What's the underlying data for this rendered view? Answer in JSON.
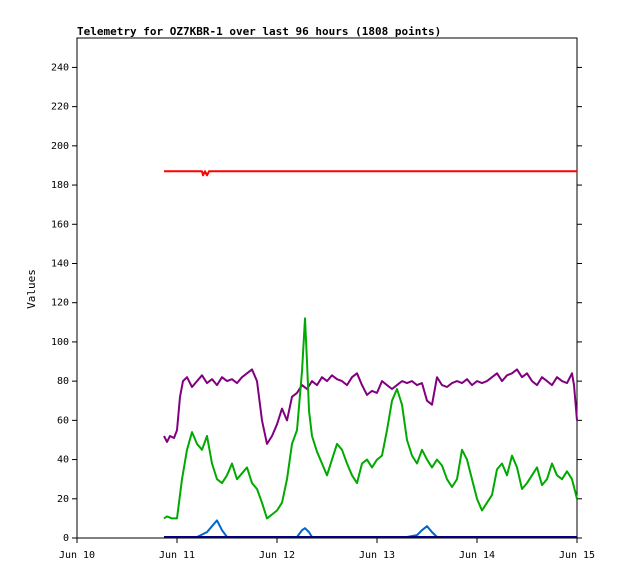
{
  "chart_data": {
    "type": "line",
    "title": "Telemetry for OZ7KBR-1 over last 96 hours (1808 points)",
    "xlabel": "",
    "ylabel": "Values",
    "x_tick_labels": [
      "Jun 10",
      "Jun 11",
      "Jun 12",
      "Jun 13",
      "Jun 14",
      "Jun 15"
    ],
    "y_tick_labels": [
      "0",
      "20",
      "40",
      "60",
      "80",
      "100",
      "120",
      "140",
      "160",
      "180",
      "200",
      "220",
      "240"
    ],
    "xlim": [
      0,
      5
    ],
    "ylim": [
      0,
      255
    ],
    "grid": false,
    "legend": "none",
    "series": [
      {
        "color": "#ff0000",
        "x": [
          0.87,
          1.2,
          1.25,
          1.26,
          1.28,
          1.3,
          1.32,
          5.0
        ],
        "y": [
          187,
          187,
          187,
          185,
          187,
          185,
          187,
          187
        ]
      },
      {
        "color": "#800080",
        "x": [
          0.87,
          0.9,
          0.93,
          0.97,
          1.0,
          1.03,
          1.06,
          1.1,
          1.15,
          1.2,
          1.25,
          1.3,
          1.35,
          1.4,
          1.45,
          1.5,
          1.55,
          1.6,
          1.65,
          1.7,
          1.75,
          1.8,
          1.85,
          1.9,
          1.95,
          2.0,
          2.05,
          2.1,
          2.15,
          2.2,
          2.25,
          2.3,
          2.35,
          2.4,
          2.45,
          2.5,
          2.55,
          2.6,
          2.65,
          2.7,
          2.75,
          2.8,
          2.85,
          2.9,
          2.95,
          3.0,
          3.05,
          3.1,
          3.15,
          3.2,
          3.25,
          3.3,
          3.35,
          3.4,
          3.45,
          3.5,
          3.55,
          3.6,
          3.65,
          3.7,
          3.75,
          3.8,
          3.85,
          3.9,
          3.95,
          4.0,
          4.05,
          4.1,
          4.15,
          4.2,
          4.25,
          4.3,
          4.35,
          4.4,
          4.45,
          4.5,
          4.55,
          4.6,
          4.65,
          4.7,
          4.75,
          4.8,
          4.85,
          4.9,
          4.95,
          4.97,
          5.0
        ],
        "y": [
          52,
          49,
          52,
          51,
          55,
          72,
          80,
          82,
          77,
          80,
          83,
          79,
          81,
          78,
          82,
          80,
          81,
          79,
          82,
          84,
          86,
          80,
          60,
          48,
          52,
          58,
          66,
          60,
          72,
          74,
          78,
          76,
          80,
          78,
          82,
          80,
          83,
          81,
          80,
          78,
          82,
          84,
          78,
          73,
          75,
          74,
          80,
          78,
          76,
          78,
          80,
          79,
          80,
          78,
          79,
          70,
          68,
          82,
          78,
          77,
          79,
          80,
          79,
          81,
          78,
          80,
          79,
          80,
          82,
          84,
          80,
          83,
          84,
          86,
          82,
          84,
          80,
          78,
          82,
          80,
          78,
          82,
          80,
          79,
          84,
          78,
          60
        ]
      },
      {
        "color": "#00aa00",
        "x": [
          0.87,
          0.9,
          0.95,
          1.0,
          1.05,
          1.1,
          1.15,
          1.2,
          1.25,
          1.3,
          1.35,
          1.4,
          1.45,
          1.5,
          1.55,
          1.6,
          1.65,
          1.7,
          1.75,
          1.8,
          1.85,
          1.9,
          1.95,
          2.0,
          2.05,
          2.1,
          2.15,
          2.2,
          2.25,
          2.28,
          2.3,
          2.32,
          2.35,
          2.4,
          2.45,
          2.5,
          2.55,
          2.6,
          2.65,
          2.7,
          2.75,
          2.8,
          2.85,
          2.9,
          2.95,
          3.0,
          3.05,
          3.1,
          3.15,
          3.2,
          3.25,
          3.3,
          3.35,
          3.4,
          3.45,
          3.5,
          3.55,
          3.6,
          3.65,
          3.7,
          3.75,
          3.8,
          3.85,
          3.9,
          3.95,
          4.0,
          4.05,
          4.1,
          4.15,
          4.2,
          4.25,
          4.3,
          4.35,
          4.4,
          4.45,
          4.5,
          4.55,
          4.6,
          4.65,
          4.7,
          4.75,
          4.8,
          4.85,
          4.9,
          4.95,
          5.0
        ],
        "y": [
          10,
          11,
          10,
          10,
          30,
          45,
          54,
          48,
          45,
          52,
          38,
          30,
          28,
          32,
          38,
          30,
          33,
          36,
          28,
          25,
          18,
          10,
          12,
          14,
          18,
          30,
          48,
          55,
          85,
          112,
          90,
          65,
          52,
          44,
          38,
          32,
          40,
          48,
          45,
          38,
          32,
          28,
          38,
          40,
          36,
          40,
          42,
          55,
          70,
          76,
          68,
          50,
          42,
          38,
          45,
          40,
          36,
          40,
          37,
          30,
          26,
          30,
          45,
          40,
          30,
          20,
          14,
          18,
          22,
          35,
          38,
          32,
          42,
          36,
          25,
          28,
          32,
          36,
          27,
          30,
          38,
          32,
          30,
          34,
          30,
          20
        ]
      },
      {
        "color": "#0066cc",
        "x": [
          0.87,
          1.2,
          1.3,
          1.35,
          1.4,
          1.45,
          1.5,
          2.2,
          2.25,
          2.28,
          2.32,
          2.35,
          3.3,
          3.4,
          3.45,
          3.5,
          3.55,
          3.6,
          3.7,
          5.0
        ],
        "y": [
          0.5,
          0.5,
          3,
          6,
          9,
          4,
          0.5,
          0.5,
          4,
          5,
          3,
          0.5,
          0.5,
          1.5,
          4,
          6,
          3,
          0.5,
          0.5,
          0.5
        ]
      },
      {
        "color": "#000080",
        "x": [
          0.87,
          5.0
        ],
        "y": [
          0.5,
          0.5
        ]
      }
    ]
  }
}
